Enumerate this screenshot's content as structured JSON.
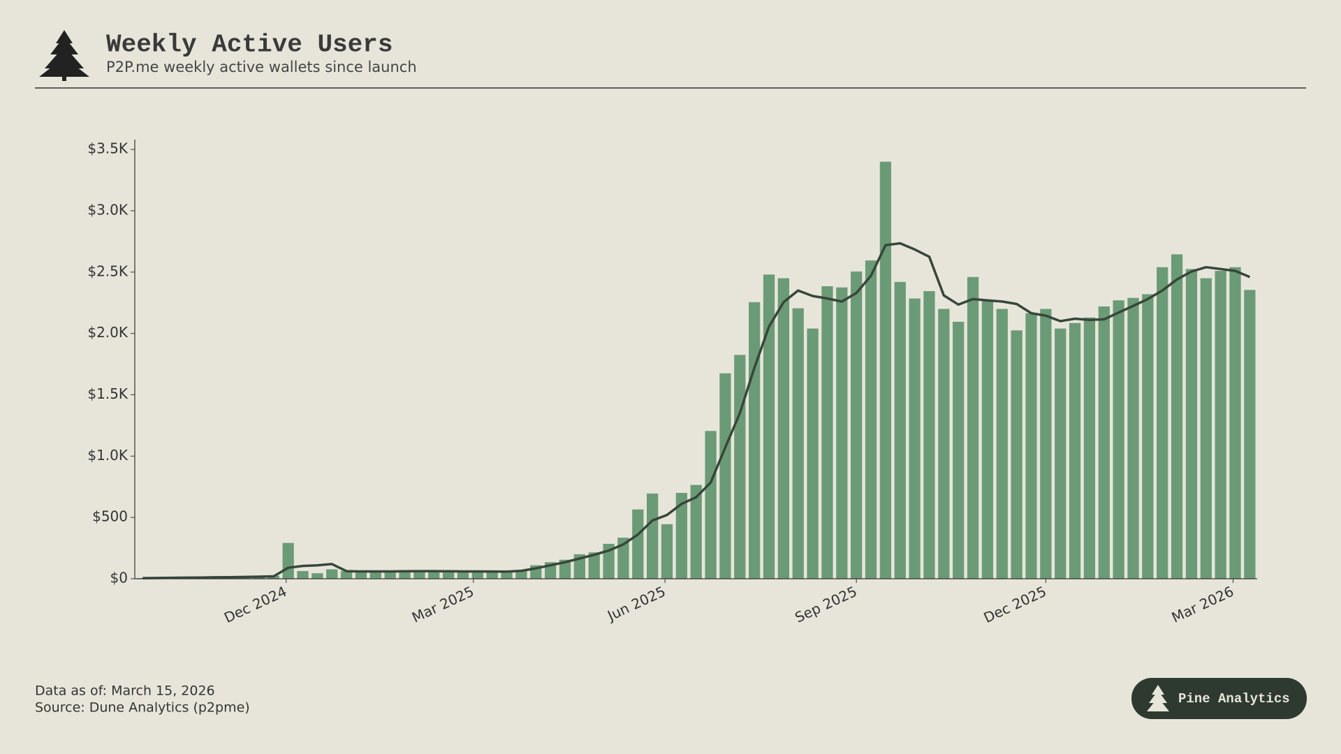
{
  "chart_data": {
    "type": "bar",
    "title": "Weekly Active Users",
    "subtitle": "P2P.me weekly active wallets since launch",
    "categories": [
      null,
      null,
      null,
      null,
      null,
      null,
      null,
      null,
      null,
      null,
      null,
      null,
      null,
      null,
      null,
      null,
      null,
      null,
      null,
      null,
      null,
      null,
      null,
      null,
      null,
      null,
      null,
      null,
      null,
      null,
      null,
      null,
      null,
      null,
      null,
      null,
      null,
      null,
      null,
      null,
      null,
      null,
      null,
      null,
      null,
      null,
      null,
      null,
      null,
      null,
      null,
      null,
      null,
      null,
      null,
      null,
      null,
      null,
      null,
      null,
      null,
      null,
      null,
      null,
      null,
      null,
      null,
      null,
      null,
      null,
      null,
      null,
      null,
      null,
      null,
      null,
      null
    ],
    "series": [
      {
        "type": "bar",
        "color": "#6b9b76",
        "values": [
          5,
          8,
          10,
          10,
          12,
          15,
          15,
          18,
          20,
          25,
          292,
          63,
          45,
          77,
          63,
          60,
          60,
          60,
          60,
          62,
          60,
          60,
          58,
          58,
          55,
          55,
          70,
          110,
          135,
          155,
          200,
          215,
          285,
          335,
          565,
          695,
          445,
          700,
          765,
          1205,
          1675,
          1825,
          2255,
          2480,
          2450,
          2205,
          2040,
          2385,
          2375,
          2505,
          2595,
          3400,
          2420,
          2285,
          2345,
          2200,
          2095,
          2460,
          2275,
          2200,
          2025,
          2165,
          2200,
          2040,
          2085,
          2130,
          2220,
          2270,
          2290,
          2320,
          2540,
          2645,
          2525,
          2450,
          2510,
          2540,
          2355
        ]
      },
      {
        "type": "line",
        "color": "#37463a",
        "values": [
          5,
          6,
          8,
          9,
          10,
          12,
          13,
          15,
          17,
          20,
          90,
          105,
          110,
          120,
          62,
          60,
          60,
          60,
          61,
          62,
          62,
          61,
          60,
          60,
          59,
          58,
          65,
          85,
          110,
          135,
          165,
          195,
          230,
          280,
          360,
          475,
          520,
          610,
          665,
          785,
          1070,
          1350,
          1720,
          2055,
          2255,
          2350,
          2305,
          2285,
          2260,
          2330,
          2470,
          2720,
          2735,
          2685,
          2625,
          2310,
          2235,
          2280,
          2270,
          2260,
          2240,
          2165,
          2145,
          2100,
          2120,
          2110,
          2115,
          2170,
          2225,
          2280,
          2350,
          2440,
          2505,
          2540,
          2525,
          2510,
          2460
        ]
      }
    ],
    "xlim": [
      -0.53,
      76.51
    ],
    "xticks": [
      {
        "value": 9.86,
        "label": "Dec 2024"
      },
      {
        "value": 22.71,
        "label": "Mar 2025"
      },
      {
        "value": 35.86,
        "label": "Jun 2025"
      },
      {
        "value": 49,
        "label": "Sep 2025"
      },
      {
        "value": 62,
        "label": "Dec 2025"
      },
      {
        "value": 74.86,
        "label": "Mar 2026"
      }
    ],
    "ylim": [
      0,
      3580
    ],
    "yticks": [
      {
        "value": 0,
        "label": "$0"
      },
      {
        "value": 500,
        "label": "$500"
      },
      {
        "value": 1000,
        "label": "$1.0K"
      },
      {
        "value": 1500,
        "label": "$1.5K"
      },
      {
        "value": 2000,
        "label": "$2.0K"
      },
      {
        "value": 2500,
        "label": "$2.5K"
      },
      {
        "value": 3000,
        "label": "$3.0K"
      },
      {
        "value": 3500,
        "label": "$3.5K"
      }
    ],
    "grid": false
  },
  "footer": {
    "data_as_of": "Data as of: March 15, 2026",
    "source": "Source: Dune Analytics (p2pme)"
  },
  "brand": "Pine Analytics"
}
